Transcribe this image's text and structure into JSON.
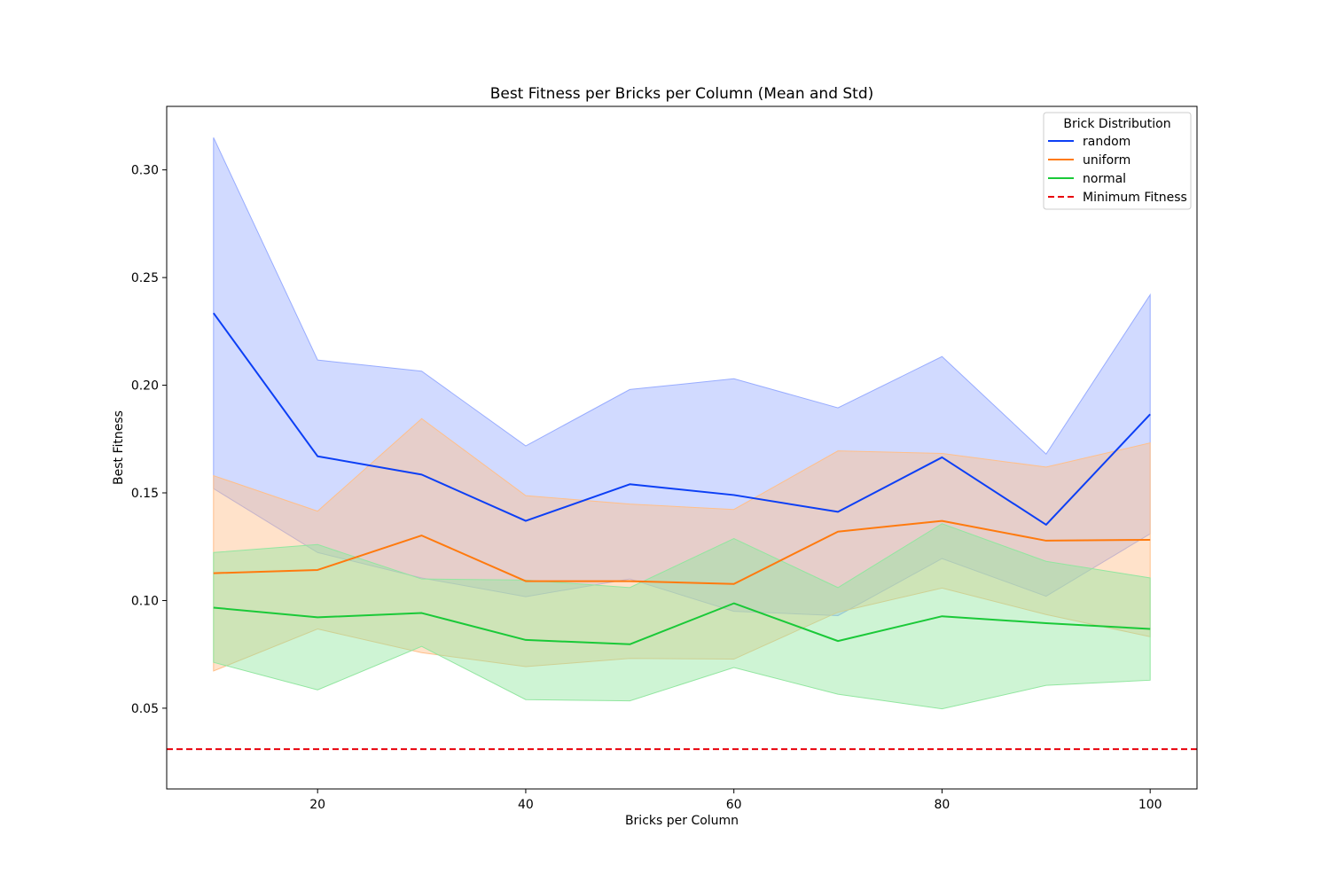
{
  "chart_data": {
    "type": "line",
    "title": "Best Fitness per Bricks per Column (Mean and Std)",
    "xlabel": "Bricks per Column",
    "ylabel": "Best Fitness",
    "xlim": [
      5.5,
      104.5
    ],
    "ylim": [
      0.0125,
      0.3295
    ],
    "xticks": [
      20,
      40,
      60,
      80,
      100
    ],
    "yticks": [
      0.05,
      0.1,
      0.15,
      0.2,
      0.25,
      0.3
    ],
    "ytick_labels": [
      "0.05",
      "0.10",
      "0.15",
      "0.20",
      "0.25",
      "0.30"
    ],
    "grid": false,
    "legend": {
      "title": "Brick Distribution",
      "placement": "top-right"
    },
    "x": [
      10,
      20,
      30,
      40,
      50,
      60,
      70,
      80,
      90,
      100
    ],
    "series": [
      {
        "name": "random",
        "color": "#0c3ff5",
        "band_color": "#98acff",
        "mean": [
          0.2335,
          0.167,
          0.1585,
          0.137,
          0.154,
          0.149,
          0.1412,
          0.1665,
          0.1352,
          0.1865
        ],
        "upper": [
          0.315,
          0.2117,
          0.2065,
          0.1718,
          0.198,
          0.203,
          0.1895,
          0.2133,
          0.168,
          0.242
        ],
        "lower": [
          0.152,
          0.1223,
          0.1105,
          0.1018,
          0.11,
          0.095,
          0.093,
          0.1195,
          0.102,
          0.131
        ]
      },
      {
        "name": "uniform",
        "color": "#ff7a0e",
        "band_color": "#ffbf8a",
        "mean": [
          0.1127,
          0.1142,
          0.1302,
          0.109,
          0.109,
          0.1077,
          0.132,
          0.137,
          0.1278,
          0.1282
        ],
        "upper": [
          0.158,
          0.1415,
          0.1845,
          0.1487,
          0.1448,
          0.1423,
          0.1695,
          0.1683,
          0.162,
          0.1732
        ],
        "lower": [
          0.0673,
          0.0868,
          0.0758,
          0.0693,
          0.0731,
          0.0728,
          0.0946,
          0.1058,
          0.0935,
          0.0832
        ]
      },
      {
        "name": "normal",
        "color": "#1ac938",
        "band_color": "#92e6a0",
        "mean": [
          0.0967,
          0.0922,
          0.0942,
          0.0817,
          0.0797,
          0.0987,
          0.0812,
          0.0927,
          0.0895,
          0.0868
        ],
        "upper": [
          0.1223,
          0.126,
          0.11,
          0.1095,
          0.106,
          0.1288,
          0.106,
          0.1357,
          0.1182,
          0.1105
        ],
        "lower": [
          0.0713,
          0.0585,
          0.0787,
          0.054,
          0.0534,
          0.0689,
          0.0565,
          0.0497,
          0.0606,
          0.063
        ]
      }
    ],
    "reference_line": {
      "name": "Minimum Fitness",
      "y": 0.031,
      "color": "#e8000b",
      "style": "dashed"
    }
  }
}
